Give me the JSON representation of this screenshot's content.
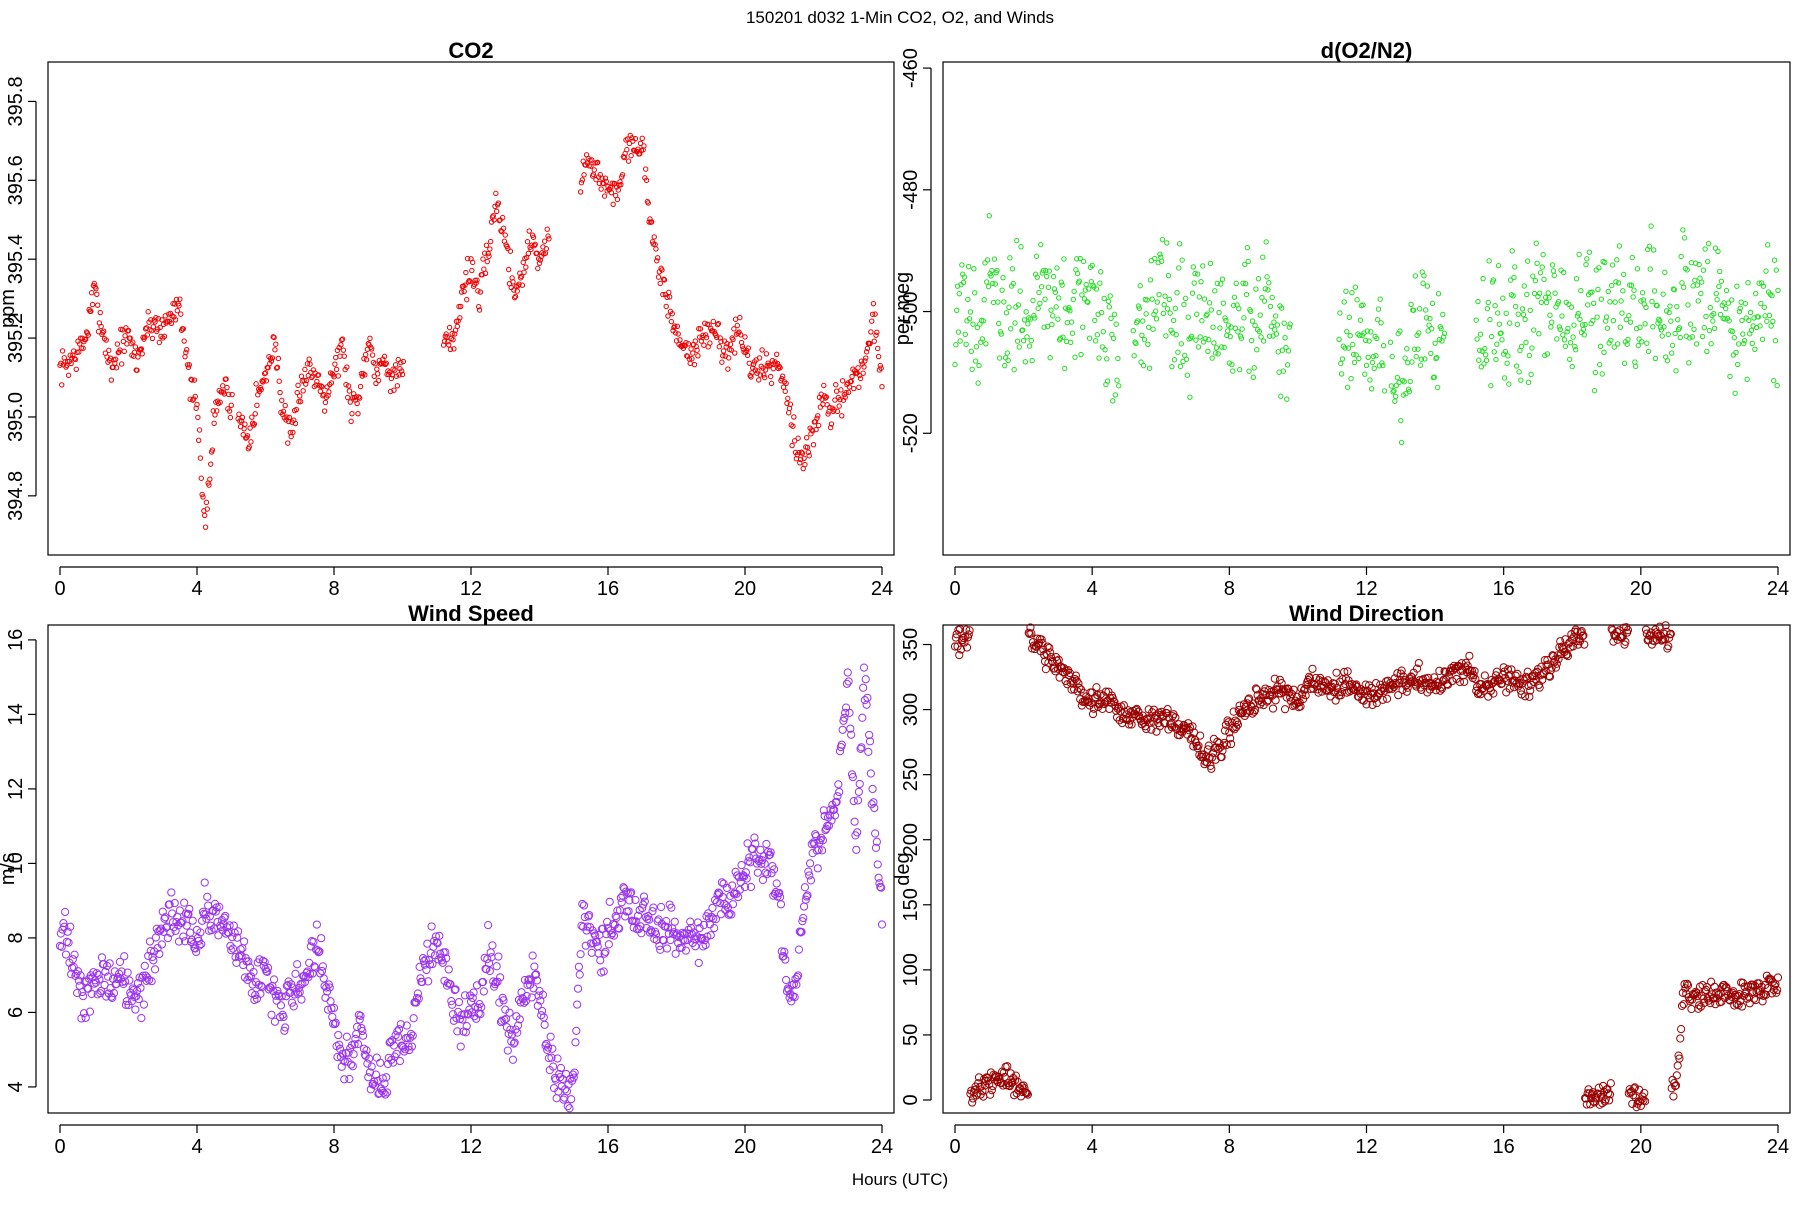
{
  "figure": {
    "title": "150201   d032   1-Min CO2, O2, and Winds",
    "xlabel": "Hours (UTC)"
  },
  "chart_data": [
    {
      "id": "co2",
      "type": "scatter",
      "title": "CO2",
      "ylabel": "ppm",
      "xlim": [
        0,
        24
      ],
      "ylim": [
        394.65,
        395.9
      ],
      "xticks": [
        0,
        4,
        8,
        12,
        16,
        20,
        24
      ],
      "yticks": [
        394.8,
        395.0,
        395.2,
        395.4,
        395.6,
        395.8
      ],
      "ytick_labels": [
        "394.8",
        "395.0",
        "395.2",
        "395.4",
        "395.6",
        "395.8"
      ],
      "color": "#ee0000",
      "marker_radius": 2.2,
      "series": [
        {
          "x": [
            0.0,
            0.25,
            0.5,
            0.75,
            1.0,
            1.25,
            1.5,
            1.75,
            2.0,
            2.25,
            2.5,
            2.75,
            3.0,
            3.25,
            3.5,
            3.75,
            4.0,
            4.25,
            4.5,
            4.75,
            5.5,
            5.75,
            6.0,
            6.25,
            6.5,
            6.75,
            7.0,
            7.25,
            7.5,
            7.75,
            8.0,
            8.25,
            8.5,
            8.75,
            9.0,
            9.25,
            9.5,
            9.75,
            11.5,
            11.75,
            12.0,
            12.25,
            12.75,
            13.0,
            13.25,
            13.5,
            13.75,
            14.0,
            15.5,
            15.75,
            16.0,
            16.25,
            16.5,
            16.75,
            17.0,
            17.25,
            17.5,
            17.75,
            18.0,
            18.25,
            18.5,
            18.75,
            19.0,
            19.25,
            19.5,
            19.75,
            20.0,
            20.25,
            20.5,
            20.75,
            21.0,
            21.25,
            21.5,
            21.75,
            22.0,
            22.25,
            22.5,
            22.75,
            23.0,
            23.25,
            23.5,
            23.75,
            24.0
          ],
          "y": [
            395.12,
            395.14,
            395.16,
            395.2,
            395.32,
            395.22,
            395.12,
            395.18,
            395.2,
            395.14,
            395.22,
            395.24,
            395.22,
            395.26,
            395.3,
            395.1,
            395.02,
            394.72,
            395.0,
            395.08,
            394.95,
            395.05,
            395.1,
            395.2,
            395.02,
            394.93,
            395.08,
            395.12,
            395.1,
            395.06,
            395.12,
            395.18,
            395.02,
            395.06,
            395.2,
            395.12,
            395.14,
            395.1,
            395.2,
            395.32,
            395.38,
            395.3,
            395.55,
            395.45,
            395.32,
            395.36,
            395.46,
            395.4,
            395.66,
            395.6,
            395.58,
            395.56,
            395.68,
            395.7,
            395.68,
            395.5,
            395.35,
            395.3,
            395.2,
            395.18,
            395.16,
            395.2,
            395.22,
            395.2,
            395.16,
            395.22,
            395.18,
            395.1,
            395.14,
            395.12,
            395.14,
            395.05,
            394.92,
            394.9,
            394.96,
            395.05,
            395.0,
            395.05,
            395.08,
            395.1,
            395.14,
            395.25,
            395.1
          ]
        }
      ]
    },
    {
      "id": "o2",
      "type": "scatter",
      "title": "d(O2/N2)",
      "ylabel": "per meg",
      "xlim": [
        0,
        24
      ],
      "ylim": [
        -540,
        -459
      ],
      "xticks": [
        0,
        4,
        8,
        12,
        16,
        20,
        24
      ],
      "yticks": [
        -460,
        -480,
        -500,
        -520
      ],
      "ytick_labels": [
        "-460",
        "-480",
        "-500",
        "-520"
      ],
      "color": "#22dd22",
      "marker_radius": 2.2,
      "series": [
        {
          "x": [
            0.0,
            0.25,
            0.5,
            0.75,
            1.0,
            1.25,
            1.5,
            1.75,
            2.0,
            2.25,
            2.5,
            2.75,
            3.0,
            3.25,
            3.5,
            3.75,
            4.0,
            4.25,
            4.5,
            5.5,
            5.75,
            6.0,
            6.25,
            6.5,
            6.75,
            7.0,
            7.25,
            7.5,
            7.75,
            8.0,
            8.25,
            8.5,
            8.75,
            9.0,
            9.25,
            9.5,
            11.5,
            11.75,
            12.0,
            12.25,
            13.0,
            13.25,
            13.5,
            13.75,
            14.0,
            15.5,
            15.75,
            16.0,
            16.25,
            16.5,
            16.75,
            17.0,
            17.25,
            17.5,
            17.75,
            18.0,
            18.25,
            18.5,
            18.75,
            19.0,
            19.25,
            19.5,
            19.75,
            20.0,
            20.25,
            20.5,
            20.75,
            21.0,
            21.25,
            21.5,
            21.75,
            22.0,
            22.25,
            22.5,
            23.0,
            23.25,
            23.75,
            24.0
          ],
          "y": [
            -505,
            -500,
            -498,
            -502,
            -496,
            -500,
            -504,
            -497,
            -499,
            -502,
            -495,
            -500,
            -498,
            -503,
            -496,
            -500,
            -497,
            -502,
            -506,
            -500,
            -498,
            -495,
            -501,
            -499,
            -504,
            -497,
            -500,
            -502,
            -498,
            -503,
            -500,
            -496,
            -505,
            -499,
            -502,
            -506,
            -505,
            -506,
            -508,
            -504,
            -512,
            -508,
            -503,
            -500,
            -505,
            -505,
            -500,
            -504,
            -498,
            -502,
            -500,
            -497,
            -503,
            -499,
            -501,
            -504,
            -500,
            -498,
            -503,
            -501,
            -497,
            -502,
            -499,
            -500,
            -496,
            -503,
            -498,
            -501,
            -497,
            -500,
            -496,
            -499,
            -495,
            -502,
            -503,
            -500,
            -498,
            -501
          ]
        }
      ]
    },
    {
      "id": "wspd",
      "type": "scatter",
      "title": "Wind Speed",
      "ylabel": "m/s",
      "xlim": [
        0,
        24
      ],
      "ylim": [
        3.3,
        16.4
      ],
      "xticks": [
        0,
        4,
        8,
        12,
        16,
        20,
        24
      ],
      "yticks": [
        4,
        6,
        8,
        10,
        12,
        14,
        16
      ],
      "ytick_labels": [
        "4",
        "6",
        "8",
        "10",
        "12",
        "14",
        "16"
      ],
      "color": "#9933ee",
      "marker_radius": 3.6,
      "series": [
        {
          "x": [
            0.0,
            0.25,
            0.5,
            0.75,
            1.0,
            1.25,
            1.5,
            1.75,
            2.0,
            2.25,
            2.5,
            2.75,
            3.0,
            3.25,
            3.5,
            3.75,
            4.0,
            4.25,
            4.5,
            4.75,
            5.0,
            5.25,
            5.5,
            5.75,
            6.0,
            6.25,
            6.5,
            6.75,
            7.0,
            7.25,
            7.5,
            7.75,
            8.0,
            8.25,
            8.5,
            8.75,
            9.0,
            9.25,
            9.5,
            9.75,
            10.0,
            10.25,
            10.5,
            10.75,
            11.0,
            11.25,
            11.5,
            11.75,
            12.0,
            12.25,
            12.5,
            12.75,
            13.0,
            13.25,
            13.5,
            13.75,
            14.0,
            14.25,
            14.5,
            14.75,
            15.0,
            15.25,
            15.5,
            15.75,
            16.0,
            16.25,
            16.5,
            16.75,
            17.0,
            17.25,
            17.5,
            17.75,
            18.0,
            18.25,
            18.5,
            18.75,
            19.0,
            19.25,
            19.5,
            19.75,
            20.0,
            20.25,
            20.5,
            20.75,
            21.0,
            21.25,
            21.5,
            21.75,
            22.0,
            22.25,
            22.5,
            22.75,
            23.0,
            23.25,
            23.5,
            23.75,
            24.0
          ],
          "y": [
            7.8,
            8.0,
            6.8,
            6.2,
            6.8,
            7.0,
            6.8,
            7.2,
            6.6,
            6.4,
            6.9,
            7.5,
            8.2,
            8.5,
            8.3,
            8.6,
            7.8,
            8.8,
            8.4,
            8.6,
            8.2,
            7.6,
            7.2,
            6.6,
            7.4,
            6.4,
            6.0,
            6.8,
            6.6,
            7.2,
            7.8,
            6.8,
            5.5,
            4.8,
            4.6,
            5.8,
            4.4,
            4.2,
            4.0,
            5.2,
            5.0,
            5.4,
            7.0,
            7.4,
            7.8,
            7.2,
            6.4,
            5.6,
            6.2,
            6.0,
            7.8,
            7.0,
            5.6,
            5.2,
            6.2,
            7.0,
            6.4,
            5.0,
            4.4,
            3.9,
            4.4,
            8.5,
            8.0,
            7.8,
            8.2,
            8.8,
            9.2,
            8.5,
            8.6,
            8.4,
            8.2,
            8.3,
            8.0,
            8.0,
            8.2,
            7.8,
            8.4,
            9.0,
            9.2,
            9.3,
            9.6,
            10.2,
            10.0,
            10.2,
            9.2,
            6.4,
            7.0,
            9.0,
            10.2,
            10.8,
            11.5,
            12.2,
            15.0,
            10.5,
            15.2,
            11.5,
            8.8
          ]
        }
      ]
    },
    {
      "id": "wdir",
      "type": "scatter",
      "title": "Wind Direction",
      "ylabel": "deg",
      "xlim": [
        0,
        24
      ],
      "ylim": [
        -10,
        365
      ],
      "xticks": [
        0,
        4,
        8,
        12,
        16,
        20,
        24
      ],
      "yticks": [
        0,
        50,
        100,
        150,
        200,
        250,
        300,
        350
      ],
      "ytick_labels": [
        "0",
        "50",
        "100",
        "150",
        "200",
        "250",
        "300",
        "350"
      ],
      "color": "#990000",
      "marker_radius": 3.6,
      "series": [
        {
          "x": [
            0.0,
            0.25,
            0.4,
            0.5,
            0.75,
            1.0,
            1.25,
            1.5,
            1.75,
            2.0,
            2.25,
            2.5,
            2.75,
            3.0,
            3.25,
            3.5,
            3.75,
            4.0,
            4.25,
            4.5,
            4.75,
            5.0,
            5.25,
            5.5,
            5.75,
            6.0,
            6.25,
            6.5,
            6.75,
            7.0,
            7.25,
            7.5,
            7.75,
            8.0,
            8.25,
            8.5,
            8.75,
            9.0,
            9.25,
            9.5,
            9.75,
            10.0,
            10.25,
            10.5,
            10.75,
            11.0,
            11.25,
            11.5,
            11.75,
            12.0,
            12.25,
            12.5,
            12.75,
            13.0,
            13.25,
            13.5,
            13.75,
            14.0,
            14.25,
            14.5,
            14.75,
            15.0,
            15.25,
            15.5,
            15.75,
            16.0,
            16.25,
            16.5,
            16.75,
            17.0,
            17.25,
            17.5,
            17.75,
            18.0,
            18.25,
            18.5,
            18.75,
            19.0,
            19.25,
            19.5,
            19.75,
            20.0,
            20.25,
            20.5,
            20.75,
            21.0,
            21.1,
            21.25,
            21.5,
            21.75,
            22.0,
            22.25,
            22.5,
            22.75,
            23.0,
            23.25,
            23.5,
            23.75,
            24.0
          ],
          "y": [
            355,
            354,
            356,
            5,
            12,
            15,
            16,
            17,
            15,
            8,
            355,
            348,
            340,
            332,
            325,
            318,
            310,
            305,
            306,
            302,
            300,
            298,
            295,
            292,
            290,
            295,
            292,
            288,
            282,
            275,
            268,
            265,
            270,
            285,
            292,
            298,
            305,
            310,
            312,
            316,
            310,
            305,
            318,
            322,
            320,
            315,
            318,
            320,
            316,
            314,
            312,
            315,
            320,
            322,
            318,
            325,
            320,
            318,
            322,
            325,
            330,
            335,
            315,
            318,
            322,
            325,
            320,
            318,
            322,
            325,
            330,
            338,
            345,
            352,
            358,
            2,
            5,
            3,
            356,
            358,
            2,
            0,
            357,
            358,
            356,
            8,
            30,
            85,
            80,
            78,
            82,
            80,
            85,
            80,
            82,
            86,
            84,
            88,
            85
          ]
        }
      ]
    }
  ]
}
